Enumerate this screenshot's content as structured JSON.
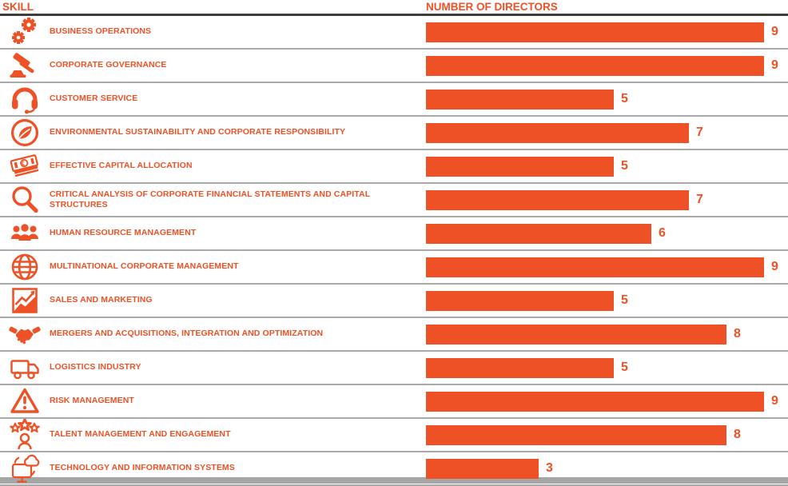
{
  "header": {
    "skill_label": "SKILL",
    "directors_label": "NUMBER OF DIRECTORS"
  },
  "colors": {
    "accent": "#EE5126",
    "row_separator": "#A9A9A9",
    "header_line": "#3D3D3D",
    "footer_bar": "#A6A6A6",
    "background": "#FFFFFF"
  },
  "chart_data": {
    "type": "bar",
    "orientation": "horizontal",
    "title": "",
    "xlabel": "NUMBER OF DIRECTORS",
    "ylabel": "SKILL",
    "xlim": [
      0,
      9
    ],
    "grid": false,
    "legend": false,
    "categories": [
      "BUSINESS OPERATIONS",
      "CORPORATE GOVERNANCE",
      "CUSTOMER SERVICE",
      "ENVIRONMENTAL SUSTAINABILITY AND CORPORATE RESPONSIBILITY",
      "EFFECTIVE CAPITAL ALLOCATION",
      "CRITICAL ANALYSIS OF CORPORATE FINANCIAL STATEMENTS AND CAPITAL STRUCTURES",
      "HUMAN RESOURCE MANAGEMENT",
      "MULTINATIONAL CORPORATE MANAGEMENT",
      "SALES AND MARKETING",
      "MERGERS AND ACQUISITIONS, INTEGRATION AND OPTIMIZATION",
      "LOGISTICS INDUSTRY",
      "RISK MANAGEMENT",
      "TALENT MANAGEMENT AND ENGAGEMENT",
      "TECHNOLOGY AND INFORMATION SYSTEMS"
    ],
    "values": [
      9,
      9,
      5,
      7,
      5,
      7,
      6,
      9,
      5,
      8,
      5,
      9,
      8,
      3
    ],
    "icons": [
      "gears-icon",
      "gavel-icon",
      "headset-icon",
      "leaf-circle-icon",
      "banknote-icon",
      "magnifier-icon",
      "people-group-icon",
      "globe-icon",
      "growth-chart-icon",
      "handshake-icon",
      "truck-icon",
      "warning-triangle-icon",
      "stars-person-icon",
      "computer-cloud-icon"
    ]
  }
}
